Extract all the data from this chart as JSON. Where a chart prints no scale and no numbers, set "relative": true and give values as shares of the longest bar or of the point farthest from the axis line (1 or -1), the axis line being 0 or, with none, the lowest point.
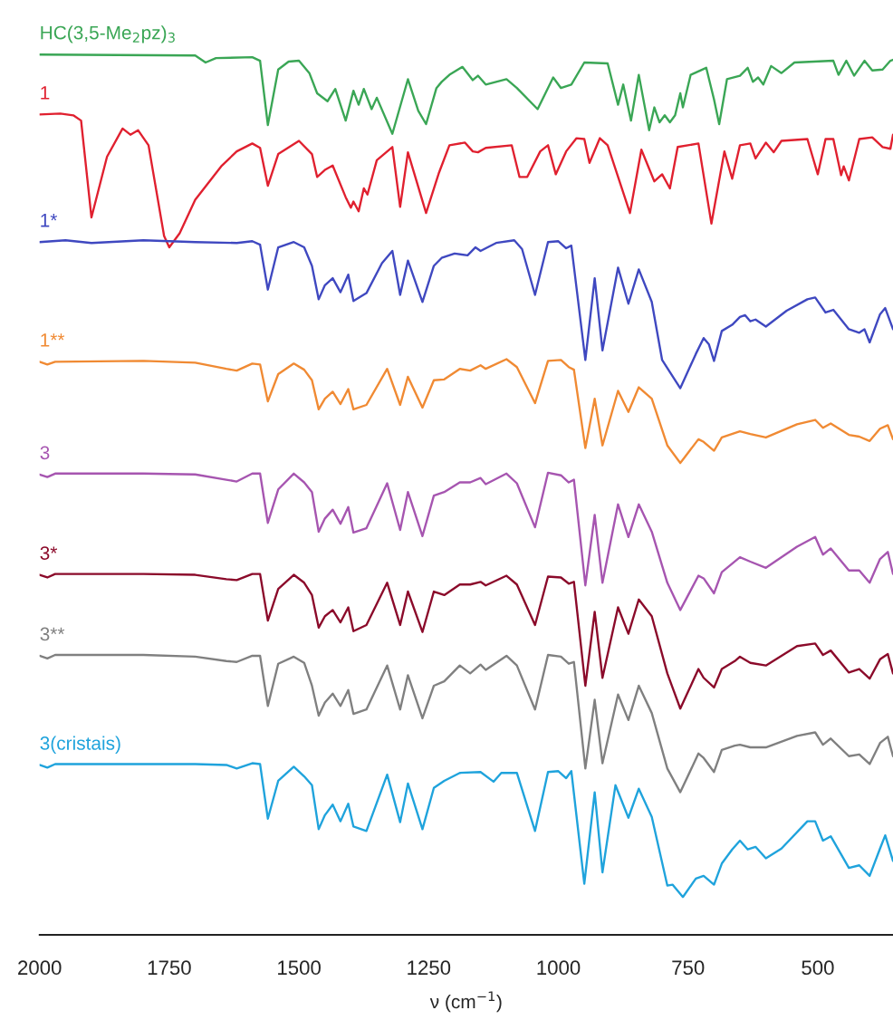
{
  "chart_data": {
    "type": "line",
    "relative": true,
    "xlabel": "ν (cm$^{−1}$)",
    "xlim": [
      2000,
      355
    ],
    "xticks": [
      2000,
      1750,
      1500,
      1250,
      1000,
      750,
      500
    ],
    "tick_labels": "x",
    "series": [
      {
        "name": "HC(3,5-Me$_{2}$pz)$_{3}$",
        "color": "#3aa655",
        "x": [
          2000,
          1700,
          1680,
          1660,
          1590,
          1575,
          1560,
          1540,
          1520,
          1500,
          1480,
          1465,
          1445,
          1430,
          1410,
          1395,
          1385,
          1375,
          1360,
          1350,
          1320,
          1290,
          1270,
          1255,
          1235,
          1225,
          1210,
          1185,
          1165,
          1155,
          1140,
          1100,
          1080,
          1040,
          1010,
          995,
          975,
          950,
          905,
          885,
          875,
          860,
          845,
          825,
          815,
          805,
          795,
          785,
          775,
          765,
          760,
          745,
          715,
          700,
          690,
          675,
          650,
          635,
          625,
          615,
          605,
          590,
          570,
          545,
          470,
          460,
          445,
          430,
          410,
          395,
          375,
          360,
          355
        ],
        "values": [
          1.0,
          0.999,
          0.991,
          0.996,
          0.997,
          0.993,
          0.92,
          0.983,
          0.992,
          0.993,
          0.979,
          0.956,
          0.947,
          0.961,
          0.925,
          0.959,
          0.943,
          0.961,
          0.938,
          0.951,
          0.91,
          0.972,
          0.936,
          0.921,
          0.962,
          0.969,
          0.977,
          0.986,
          0.971,
          0.976,
          0.966,
          0.972,
          0.962,
          0.938,
          0.974,
          0.962,
          0.966,
          0.991,
          0.99,
          0.943,
          0.966,
          0.925,
          0.977,
          0.914,
          0.94,
          0.923,
          0.931,
          0.923,
          0.931,
          0.956,
          0.94,
          0.977,
          0.985,
          0.949,
          0.921,
          0.972,
          0.976,
          0.985,
          0.969,
          0.974,
          0.966,
          0.987,
          0.979,
          0.991,
          0.993,
          0.977,
          0.993,
          0.976,
          0.993,
          0.982,
          0.983,
          0.993,
          0.994
        ]
      },
      {
        "name": "1",
        "color": "#e0202f",
        "x": [
          2000,
          1960,
          1935,
          1920,
          1900,
          1870,
          1840,
          1825,
          1810,
          1790,
          1760,
          1750,
          1730,
          1700,
          1650,
          1620,
          1590,
          1575,
          1560,
          1540,
          1500,
          1475,
          1465,
          1450,
          1435,
          1410,
          1400,
          1395,
          1385,
          1375,
          1368,
          1350,
          1320,
          1305,
          1290,
          1255,
          1230,
          1210,
          1180,
          1165,
          1155,
          1140,
          1090,
          1075,
          1060,
          1035,
          1020,
          1005,
          985,
          965,
          950,
          940,
          920,
          905,
          862,
          840,
          815,
          800,
          785,
          770,
          730,
          705,
          680,
          665,
          650,
          630,
          620,
          600,
          585,
          570,
          520,
          500,
          485,
          470,
          455,
          450,
          440,
          420,
          395,
          375,
          360,
          355
        ],
        "values": [
          0.932,
          0.933,
          0.931,
          0.925,
          0.815,
          0.884,
          0.916,
          0.909,
          0.914,
          0.897,
          0.794,
          0.781,
          0.797,
          0.835,
          0.873,
          0.89,
          0.899,
          0.894,
          0.851,
          0.887,
          0.902,
          0.887,
          0.861,
          0.869,
          0.874,
          0.838,
          0.826,
          0.833,
          0.822,
          0.848,
          0.841,
          0.88,
          0.895,
          0.827,
          0.889,
          0.82,
          0.866,
          0.897,
          0.9,
          0.89,
          0.889,
          0.894,
          0.897,
          0.861,
          0.861,
          0.89,
          0.897,
          0.864,
          0.89,
          0.905,
          0.904,
          0.877,
          0.905,
          0.897,
          0.82,
          0.892,
          0.856,
          0.864,
          0.848,
          0.895,
          0.899,
          0.808,
          0.89,
          0.859,
          0.897,
          0.899,
          0.882,
          0.9,
          0.889,
          0.902,
          0.904,
          0.864,
          0.904,
          0.904,
          0.863,
          0.873,
          0.857,
          0.904,
          0.906,
          0.895,
          0.893,
          0.909
        ]
      },
      {
        "name": "1*",
        "color": "#3f48c0",
        "x": [
          2000,
          1950,
          1900,
          1800,
          1700,
          1620,
          1590,
          1575,
          1560,
          1540,
          1510,
          1490,
          1475,
          1462,
          1450,
          1435,
          1420,
          1405,
          1395,
          1370,
          1340,
          1320,
          1305,
          1290,
          1262,
          1240,
          1225,
          1200,
          1175,
          1160,
          1150,
          1120,
          1085,
          1070,
          1045,
          1020,
          1000,
          985,
          975,
          948,
          930,
          915,
          885,
          865,
          845,
          820,
          800,
          765,
          735,
          720,
          710,
          700,
          685,
          665,
          650,
          640,
          630,
          620,
          600,
          560,
          520,
          505,
          485,
          470,
          440,
          420,
          410,
          400,
          380,
          370,
          355
        ],
        "values": [
          0.787,
          0.789,
          0.786,
          0.789,
          0.787,
          0.786,
          0.788,
          0.784,
          0.733,
          0.781,
          0.787,
          0.781,
          0.76,
          0.722,
          0.738,
          0.746,
          0.73,
          0.75,
          0.72,
          0.729,
          0.763,
          0.777,
          0.727,
          0.766,
          0.719,
          0.76,
          0.769,
          0.774,
          0.772,
          0.781,
          0.777,
          0.786,
          0.789,
          0.779,
          0.727,
          0.787,
          0.788,
          0.78,
          0.783,
          0.653,
          0.746,
          0.664,
          0.758,
          0.717,
          0.756,
          0.719,
          0.653,
          0.621,
          0.66,
          0.678,
          0.671,
          0.652,
          0.686,
          0.693,
          0.702,
          0.704,
          0.697,
          0.699,
          0.691,
          0.709,
          0.722,
          0.724,
          0.707,
          0.71,
          0.688,
          0.684,
          0.688,
          0.673,
          0.705,
          0.712,
          0.688
        ]
      },
      {
        "name": "1**",
        "color": "#f08a33",
        "x": [
          2000,
          1985,
          1970,
          1800,
          1700,
          1640,
          1620,
          1590,
          1575,
          1560,
          1540,
          1510,
          1490,
          1475,
          1462,
          1450,
          1435,
          1420,
          1405,
          1395,
          1370,
          1330,
          1305,
          1290,
          1262,
          1240,
          1220,
          1190,
          1170,
          1150,
          1140,
          1100,
          1080,
          1045,
          1020,
          995,
          980,
          970,
          948,
          930,
          915,
          885,
          865,
          845,
          820,
          790,
          765,
          730,
          720,
          700,
          685,
          650,
          630,
          600,
          540,
          505,
          490,
          475,
          440,
          420,
          400,
          380,
          365,
          355
        ],
        "values": [
          0.651,
          0.648,
          0.651,
          0.652,
          0.65,
          0.643,
          0.641,
          0.649,
          0.648,
          0.606,
          0.637,
          0.649,
          0.642,
          0.63,
          0.597,
          0.609,
          0.617,
          0.603,
          0.62,
          0.597,
          0.602,
          0.643,
          0.602,
          0.634,
          0.599,
          0.63,
          0.631,
          0.643,
          0.641,
          0.647,
          0.643,
          0.654,
          0.645,
          0.604,
          0.652,
          0.653,
          0.645,
          0.642,
          0.553,
          0.609,
          0.556,
          0.618,
          0.594,
          0.622,
          0.609,
          0.556,
          0.536,
          0.563,
          0.56,
          0.55,
          0.565,
          0.572,
          0.569,
          0.565,
          0.58,
          0.585,
          0.576,
          0.581,
          0.568,
          0.566,
          0.561,
          0.575,
          0.579,
          0.563
        ]
      },
      {
        "name": "3",
        "color": "#a655b0",
        "x": [
          2000,
          1985,
          1970,
          1800,
          1700,
          1640,
          1620,
          1590,
          1575,
          1560,
          1540,
          1510,
          1490,
          1475,
          1462,
          1450,
          1435,
          1420,
          1405,
          1395,
          1370,
          1330,
          1305,
          1290,
          1262,
          1240,
          1220,
          1190,
          1170,
          1150,
          1140,
          1100,
          1080,
          1045,
          1020,
          995,
          980,
          970,
          948,
          930,
          915,
          885,
          865,
          845,
          820,
          790,
          765,
          730,
          720,
          700,
          685,
          650,
          630,
          600,
          540,
          505,
          490,
          475,
          440,
          420,
          400,
          380,
          365,
          355
        ],
        "values": [
          0.523,
          0.52,
          0.524,
          0.524,
          0.523,
          0.517,
          0.515,
          0.524,
          0.524,
          0.468,
          0.506,
          0.524,
          0.514,
          0.503,
          0.458,
          0.473,
          0.483,
          0.467,
          0.486,
          0.457,
          0.462,
          0.513,
          0.46,
          0.503,
          0.453,
          0.499,
          0.503,
          0.514,
          0.514,
          0.519,
          0.512,
          0.524,
          0.513,
          0.463,
          0.525,
          0.522,
          0.514,
          0.517,
          0.397,
          0.477,
          0.4,
          0.489,
          0.452,
          0.489,
          0.458,
          0.4,
          0.369,
          0.408,
          0.405,
          0.388,
          0.412,
          0.429,
          0.424,
          0.417,
          0.441,
          0.452,
          0.432,
          0.439,
          0.414,
          0.414,
          0.4,
          0.427,
          0.435,
          0.41
        ]
      },
      {
        "name": "3*",
        "color": "#8b0a2a",
        "x": [
          2000,
          1985,
          1970,
          1800,
          1700,
          1640,
          1620,
          1590,
          1575,
          1560,
          1540,
          1510,
          1490,
          1475,
          1462,
          1450,
          1435,
          1420,
          1405,
          1395,
          1370,
          1330,
          1305,
          1290,
          1262,
          1240,
          1220,
          1190,
          1170,
          1150,
          1140,
          1100,
          1080,
          1045,
          1020,
          995,
          980,
          970,
          948,
          930,
          915,
          885,
          865,
          845,
          820,
          790,
          765,
          730,
          720,
          700,
          685,
          660,
          650,
          630,
          600,
          540,
          505,
          490,
          475,
          440,
          420,
          400,
          380,
          365,
          355
        ],
        "values": [
          0.409,
          0.406,
          0.41,
          0.41,
          0.409,
          0.404,
          0.403,
          0.41,
          0.41,
          0.357,
          0.393,
          0.409,
          0.4,
          0.386,
          0.349,
          0.362,
          0.369,
          0.355,
          0.372,
          0.345,
          0.352,
          0.4,
          0.352,
          0.39,
          0.344,
          0.39,
          0.386,
          0.398,
          0.398,
          0.401,
          0.397,
          0.408,
          0.398,
          0.352,
          0.407,
          0.406,
          0.399,
          0.401,
          0.283,
          0.367,
          0.292,
          0.372,
          0.342,
          0.381,
          0.362,
          0.297,
          0.257,
          0.302,
          0.292,
          0.281,
          0.302,
          0.311,
          0.316,
          0.309,
          0.306,
          0.328,
          0.331,
          0.318,
          0.323,
          0.298,
          0.302,
          0.291,
          0.313,
          0.319,
          0.297
        ]
      },
      {
        "name": "3**",
        "color": "#808080",
        "x": [
          2000,
          1985,
          1970,
          1800,
          1700,
          1640,
          1620,
          1590,
          1575,
          1560,
          1540,
          1510,
          1490,
          1475,
          1462,
          1450,
          1435,
          1420,
          1405,
          1395,
          1370,
          1330,
          1305,
          1290,
          1262,
          1240,
          1220,
          1190,
          1170,
          1150,
          1140,
          1100,
          1080,
          1045,
          1020,
          995,
          980,
          970,
          948,
          930,
          915,
          885,
          865,
          845,
          820,
          790,
          765,
          730,
          720,
          700,
          685,
          660,
          650,
          630,
          600,
          540,
          505,
          490,
          475,
          440,
          420,
          400,
          380,
          365,
          355
        ],
        "values": [
          0.317,
          0.314,
          0.318,
          0.318,
          0.316,
          0.311,
          0.31,
          0.317,
          0.317,
          0.26,
          0.308,
          0.316,
          0.309,
          0.283,
          0.249,
          0.264,
          0.274,
          0.26,
          0.278,
          0.251,
          0.256,
          0.306,
          0.256,
          0.295,
          0.246,
          0.283,
          0.288,
          0.306,
          0.297,
          0.307,
          0.301,
          0.317,
          0.306,
          0.256,
          0.318,
          0.316,
          0.308,
          0.31,
          0.189,
          0.267,
          0.195,
          0.273,
          0.244,
          0.283,
          0.252,
          0.189,
          0.162,
          0.206,
          0.201,
          0.185,
          0.21,
          0.215,
          0.216,
          0.213,
          0.213,
          0.226,
          0.23,
          0.216,
          0.223,
          0.203,
          0.205,
          0.194,
          0.218,
          0.225,
          0.203
        ]
      },
      {
        "name": "3(cristais)",
        "color": "#1fa3dc",
        "x": [
          2000,
          1985,
          1970,
          1800,
          1700,
          1640,
          1620,
          1590,
          1575,
          1560,
          1540,
          1510,
          1490,
          1475,
          1462,
          1450,
          1435,
          1420,
          1405,
          1395,
          1370,
          1330,
          1305,
          1290,
          1262,
          1240,
          1220,
          1190,
          1150,
          1125,
          1110,
          1080,
          1045,
          1020,
          1000,
          985,
          975,
          950,
          930,
          915,
          890,
          865,
          845,
          820,
          790,
          780,
          760,
          735,
          720,
          700,
          685,
          665,
          650,
          635,
          620,
          600,
          570,
          520,
          505,
          490,
          475,
          440,
          420,
          400,
          380,
          370,
          355
        ],
        "values": [
          0.193,
          0.19,
          0.194,
          0.194,
          0.194,
          0.193,
          0.189,
          0.195,
          0.194,
          0.132,
          0.175,
          0.191,
          0.18,
          0.17,
          0.12,
          0.136,
          0.148,
          0.129,
          0.149,
          0.123,
          0.118,
          0.182,
          0.128,
          0.172,
          0.12,
          0.167,
          0.175,
          0.184,
          0.185,
          0.174,
          0.184,
          0.184,
          0.118,
          0.185,
          0.186,
          0.178,
          0.186,
          0.058,
          0.162,
          0.071,
          0.17,
          0.133,
          0.166,
          0.134,
          0.056,
          0.057,
          0.043,
          0.064,
          0.067,
          0.057,
          0.081,
          0.097,
          0.107,
          0.097,
          0.1,
          0.087,
          0.098,
          0.129,
          0.129,
          0.107,
          0.112,
          0.076,
          0.079,
          0.067,
          0.098,
          0.113,
          0.084
        ]
      }
    ]
  }
}
